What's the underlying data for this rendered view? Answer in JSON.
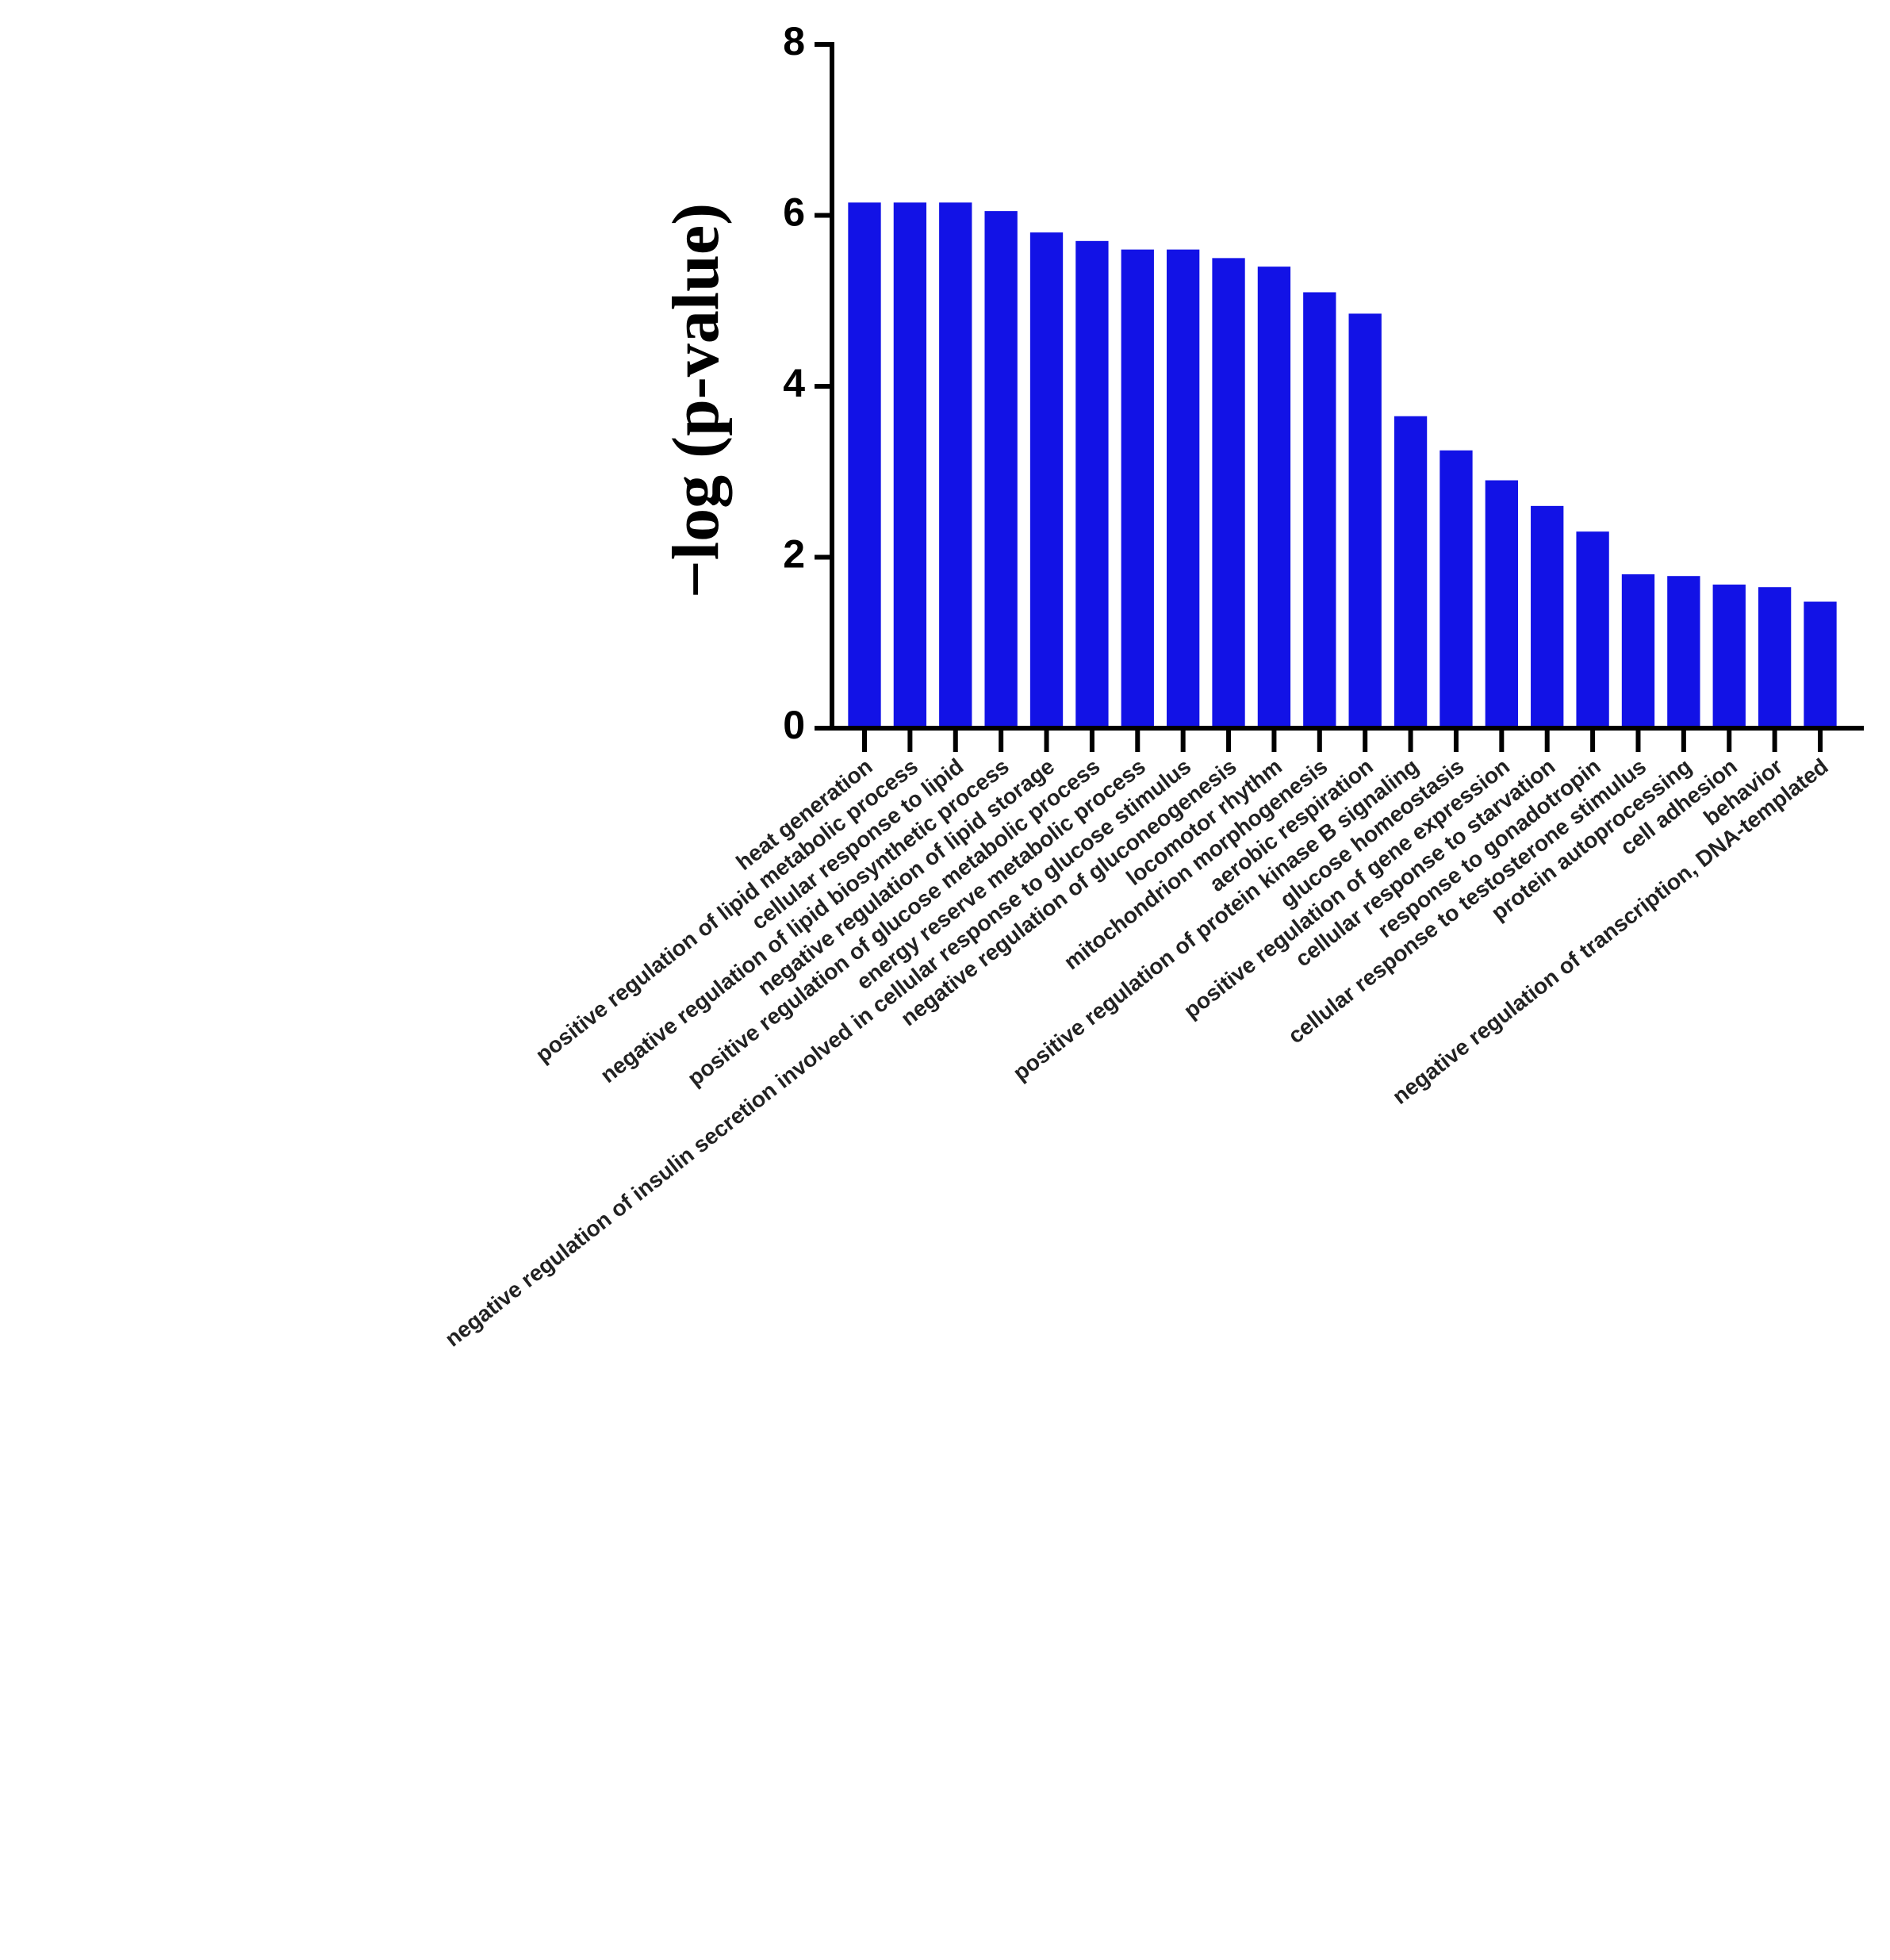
{
  "chart_data": {
    "type": "bar",
    "y_label": "−log (p-value)",
    "categories": [
      "heat generation",
      "positive regulation of lipid metabolic process",
      "cellular response to lipid",
      "negative regulation of lipid biosynthetic process",
      "negative regulation of lipid storage",
      "positive regulation of glucose metabolic process",
      "energy reserve metabolic process",
      "negative regulation of insulin secretion involved in cellular response to glucose stimulus",
      "negative regulation of gluconeogenesis",
      "locomotor rhythm",
      "mitochondrion morphogenesis",
      "aerobic respiration",
      "positive regulation of protein kinase B signaling",
      "glucose homeostasis",
      "positive regulation of gene expression",
      "cellular response to starvation",
      "response to gonadotropin",
      "cellular response to testosterone stimulus",
      "protein autoprocessing",
      "cell adhesion",
      "behavior",
      "negative regulation of transcription, DNA-templated"
    ],
    "values": [
      6.15,
      6.15,
      6.15,
      6.05,
      5.8,
      5.7,
      5.6,
      5.6,
      5.5,
      5.4,
      5.1,
      4.85,
      3.65,
      3.25,
      2.9,
      2.6,
      2.3,
      1.8,
      1.78,
      1.68,
      1.65,
      1.48
    ],
    "color": "#1212e6",
    "ylim": [
      0,
      8
    ],
    "yticks": [
      0,
      2,
      4,
      6,
      8
    ]
  }
}
